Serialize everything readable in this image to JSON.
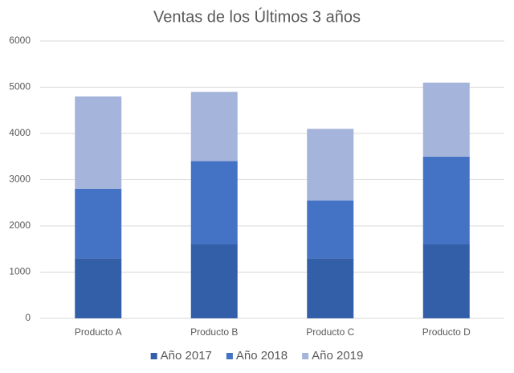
{
  "chart_data": {
    "type": "stacked_bar",
    "title": "Ventas de los Últimos 3 años",
    "categories": [
      "Producto A",
      "Producto B",
      "Producto C",
      "Producto D"
    ],
    "series": [
      {
        "name": "Año 2017",
        "color": "#335ea8",
        "values": [
          1300,
          1600,
          1300,
          1600
        ]
      },
      {
        "name": "Año 2018",
        "color": "#4472c4",
        "values": [
          1500,
          1800,
          1250,
          1900
        ]
      },
      {
        "name": "Año 2019",
        "color": "#a5b4da",
        "values": [
          2000,
          1500,
          1550,
          1600
        ]
      }
    ],
    "ylim": [
      0,
      6000
    ],
    "yticks": [
      0,
      1000,
      2000,
      3000,
      4000,
      5000,
      6000
    ],
    "grid": true,
    "legend": "bottom"
  }
}
